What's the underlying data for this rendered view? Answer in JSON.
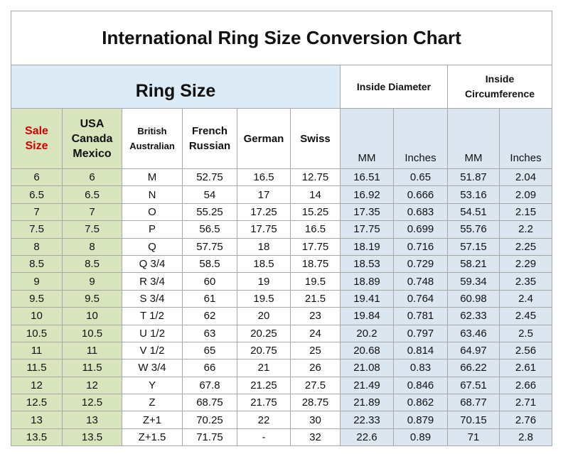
{
  "title": "International Ring Size Conversion Chart",
  "groups": {
    "ring_size": "Ring Size",
    "inside_diameter": "Inside Diameter",
    "inside_circumference_1": "Inside",
    "inside_circumference_2": "Circumference"
  },
  "headers": {
    "sale_1": "Sale",
    "sale_2": "Size",
    "usa_1": "USA",
    "usa_2": "Canada",
    "usa_3": "Mexico",
    "british_1": "British",
    "british_2": "Australian",
    "french_1": "French",
    "french_2": "Russian",
    "german": "German",
    "swiss": "Swiss",
    "mm_1": "MM",
    "inches_1": "Inches",
    "mm_2": "MM",
    "inches_2": "Inches"
  },
  "rows": [
    [
      "6",
      "6",
      "M",
      "52.75",
      "16.5",
      "12.75",
      "16.51",
      "0.65",
      "51.87",
      "2.04"
    ],
    [
      "6.5",
      "6.5",
      "N",
      "54",
      "17",
      "14",
      "16.92",
      "0.666",
      "53.16",
      "2.09"
    ],
    [
      "7",
      "7",
      "O",
      "55.25",
      "17.25",
      "15.25",
      "17.35",
      "0.683",
      "54.51",
      "2.15"
    ],
    [
      "7.5",
      "7.5",
      "P",
      "56.5",
      "17.75",
      "16.5",
      "17.75",
      "0.699",
      "55.76",
      "2.2"
    ],
    [
      "8",
      "8",
      "Q",
      "57.75",
      "18",
      "17.75",
      "18.19",
      "0.716",
      "57.15",
      "2.25"
    ],
    [
      "8.5",
      "8.5",
      "Q 3/4",
      "58.5",
      "18.5",
      "18.75",
      "18.53",
      "0.729",
      "58.21",
      "2.29"
    ],
    [
      "9",
      "9",
      "R 3/4",
      "60",
      "19",
      "19.5",
      "18.89",
      "0.748",
      "59.34",
      "2.35"
    ],
    [
      "9.5",
      "9.5",
      "S 3/4",
      "61",
      "19.5",
      "21.5",
      "19.41",
      "0.764",
      "60.98",
      "2.4"
    ],
    [
      "10",
      "10",
      "T 1/2",
      "62",
      "20",
      "23",
      "19.84",
      "0.781",
      "62.33",
      "2.45"
    ],
    [
      "10.5",
      "10.5",
      "U 1/2",
      "63",
      "20.25",
      "24",
      "20.2",
      "0.797",
      "63.46",
      "2.5"
    ],
    [
      "11",
      "11",
      "V 1/2",
      "65",
      "20.75",
      "25",
      "20.68",
      "0.814",
      "64.97",
      "2.56"
    ],
    [
      "11.5",
      "11.5",
      "W 3/4",
      "66",
      "21",
      "26",
      "21.08",
      "0.83",
      "66.22",
      "2.61"
    ],
    [
      "12",
      "12",
      "Y",
      "67.8",
      "21.25",
      "27.5",
      "21.49",
      "0.846",
      "67.51",
      "2.66"
    ],
    [
      "12.5",
      "12.5",
      "Z",
      "68.75",
      "21.75",
      "28.75",
      "21.89",
      "0.862",
      "68.77",
      "2.71"
    ],
    [
      "13",
      "13",
      "Z+1",
      "70.25",
      "22",
      "30",
      "22.33",
      "0.879",
      "70.15",
      "2.76"
    ],
    [
      "13.5",
      "13.5",
      "Z+1.5",
      "71.75",
      "-",
      "32",
      "22.6",
      "0.89",
      "71",
      "2.8"
    ]
  ]
}
